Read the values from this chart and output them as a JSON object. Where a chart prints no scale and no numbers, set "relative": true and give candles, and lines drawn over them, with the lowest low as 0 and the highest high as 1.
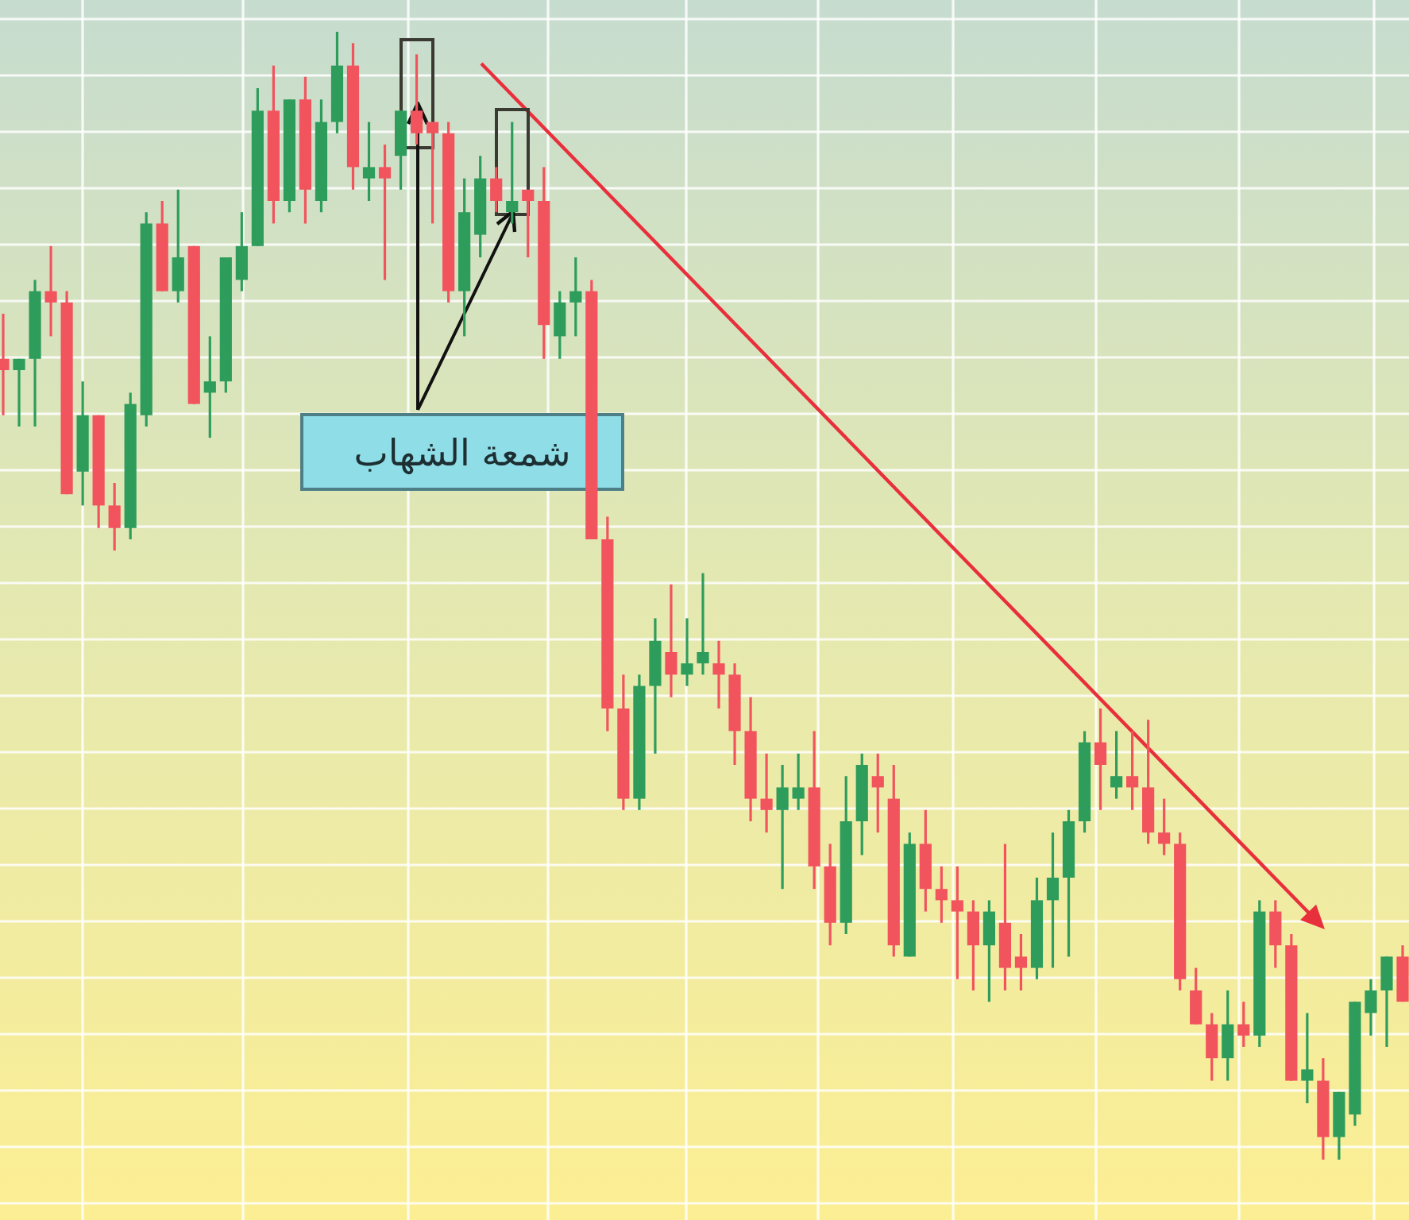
{
  "chart_data": {
    "type": "candlestick",
    "relative": true,
    "grid": true,
    "categories": [
      null,
      null,
      null,
      null,
      null,
      null,
      null,
      null,
      null,
      null,
      null,
      null,
      null,
      null,
      null,
      null,
      null,
      null,
      null,
      null,
      null,
      null,
      null,
      null,
      null,
      null,
      null,
      null,
      null,
      null,
      null,
      null,
      null,
      null,
      null,
      null,
      null,
      null,
      null,
      null,
      null,
      null,
      null,
      null,
      null,
      null,
      null,
      null,
      null,
      null,
      null,
      null,
      null,
      null,
      null,
      null,
      null,
      null,
      null,
      null,
      null,
      null,
      null,
      null,
      null,
      null,
      null,
      null,
      null,
      null,
      null,
      null,
      null,
      null,
      null,
      null,
      null,
      null,
      null,
      null,
      null,
      null,
      null,
      null,
      null,
      null,
      null,
      null,
      null
    ],
    "ohlc": [
      [
        0.71,
        0.75,
        0.66,
        0.7
      ],
      [
        0.7,
        0.71,
        0.65,
        0.71
      ],
      [
        0.71,
        0.78,
        0.65,
        0.77
      ],
      [
        0.77,
        0.81,
        0.73,
        0.76
      ],
      [
        0.76,
        0.77,
        0.59,
        0.59
      ],
      [
        0.61,
        0.69,
        0.58,
        0.66
      ],
      [
        0.66,
        0.66,
        0.56,
        0.58
      ],
      [
        0.58,
        0.6,
        0.54,
        0.56
      ],
      [
        0.56,
        0.68,
        0.55,
        0.67
      ],
      [
        0.66,
        0.84,
        0.65,
        0.83
      ],
      [
        0.83,
        0.85,
        0.77,
        0.77
      ],
      [
        0.77,
        0.86,
        0.76,
        0.8
      ],
      [
        0.81,
        0.81,
        0.67,
        0.67
      ],
      [
        0.68,
        0.73,
        0.64,
        0.69
      ],
      [
        0.69,
        0.8,
        0.68,
        0.8
      ],
      [
        0.78,
        0.84,
        0.77,
        0.81
      ],
      [
        0.81,
        0.95,
        0.81,
        0.93
      ],
      [
        0.93,
        0.97,
        0.83,
        0.85
      ],
      [
        0.85,
        0.94,
        0.84,
        0.94
      ],
      [
        0.94,
        0.96,
        0.83,
        0.86
      ],
      [
        0.85,
        0.94,
        0.84,
        0.92
      ],
      [
        0.92,
        1.0,
        0.91,
        0.97
      ],
      [
        0.97,
        0.99,
        0.86,
        0.88
      ],
      [
        0.87,
        0.92,
        0.85,
        0.88
      ],
      [
        0.88,
        0.9,
        0.78,
        0.87
      ],
      [
        0.89,
        0.93,
        0.86,
        0.93
      ],
      [
        0.93,
        0.98,
        0.9,
        0.91
      ],
      [
        0.92,
        0.92,
        0.83,
        0.91
      ],
      [
        0.91,
        0.92,
        0.76,
        0.77
      ],
      [
        0.77,
        0.87,
        0.73,
        0.84
      ],
      [
        0.82,
        0.89,
        0.8,
        0.87
      ],
      [
        0.87,
        0.88,
        0.84,
        0.85
      ],
      [
        0.84,
        0.92,
        0.83,
        0.85
      ],
      [
        0.86,
        0.86,
        0.8,
        0.85
      ],
      [
        0.85,
        0.88,
        0.71,
        0.74
      ],
      [
        0.73,
        0.77,
        0.71,
        0.76
      ],
      [
        0.76,
        0.8,
        0.73,
        0.77
      ],
      [
        0.77,
        0.78,
        0.55,
        0.55
      ],
      [
        0.55,
        0.57,
        0.38,
        0.4
      ],
      [
        0.4,
        0.43,
        0.31,
        0.32
      ],
      [
        0.32,
        0.43,
        0.31,
        0.42
      ],
      [
        0.42,
        0.48,
        0.36,
        0.46
      ],
      [
        0.45,
        0.51,
        0.41,
        0.43
      ],
      [
        0.43,
        0.48,
        0.42,
        0.44
      ],
      [
        0.44,
        0.52,
        0.43,
        0.45
      ],
      [
        0.44,
        0.46,
        0.4,
        0.43
      ],
      [
        0.43,
        0.44,
        0.35,
        0.38
      ],
      [
        0.38,
        0.41,
        0.3,
        0.32
      ],
      [
        0.32,
        0.36,
        0.29,
        0.31
      ],
      [
        0.31,
        0.35,
        0.24,
        0.33
      ],
      [
        0.32,
        0.36,
        0.31,
        0.33
      ],
      [
        0.33,
        0.38,
        0.24,
        0.26
      ],
      [
        0.26,
        0.28,
        0.19,
        0.21
      ],
      [
        0.21,
        0.34,
        0.2,
        0.3
      ],
      [
        0.3,
        0.36,
        0.27,
        0.35
      ],
      [
        0.34,
        0.36,
        0.29,
        0.33
      ],
      [
        0.32,
        0.35,
        0.18,
        0.19
      ],
      [
        0.18,
        0.29,
        0.18,
        0.28
      ],
      [
        0.28,
        0.31,
        0.22,
        0.24
      ],
      [
        0.24,
        0.26,
        0.21,
        0.23
      ],
      [
        0.23,
        0.26,
        0.16,
        0.22
      ],
      [
        0.22,
        0.23,
        0.15,
        0.19
      ],
      [
        0.19,
        0.23,
        0.14,
        0.22
      ],
      [
        0.21,
        0.28,
        0.15,
        0.17
      ],
      [
        0.18,
        0.2,
        0.15,
        0.17
      ],
      [
        0.17,
        0.25,
        0.16,
        0.23
      ],
      [
        0.23,
        0.29,
        0.17,
        0.25
      ],
      [
        0.25,
        0.31,
        0.18,
        0.3
      ],
      [
        0.3,
        0.38,
        0.29,
        0.37
      ],
      [
        0.37,
        0.4,
        0.31,
        0.35
      ],
      [
        0.33,
        0.38,
        0.32,
        0.34
      ],
      [
        0.34,
        0.38,
        0.31,
        0.33
      ],
      [
        0.33,
        0.39,
        0.28,
        0.29
      ],
      [
        0.29,
        0.32,
        0.27,
        0.28
      ],
      [
        0.28,
        0.29,
        0.15,
        0.16
      ],
      [
        0.15,
        0.17,
        0.12,
        0.12
      ],
      [
        0.12,
        0.13,
        0.07,
        0.09
      ],
      [
        0.09,
        0.15,
        0.07,
        0.12
      ],
      [
        0.12,
        0.14,
        0.1,
        0.11
      ],
      [
        0.11,
        0.23,
        0.1,
        0.22
      ],
      [
        0.22,
        0.23,
        0.17,
        0.19
      ],
      [
        0.19,
        0.2,
        0.07,
        0.07
      ],
      [
        0.07,
        0.13,
        0.05,
        0.08
      ],
      [
        0.07,
        0.09,
        0.0,
        0.02
      ],
      [
        0.02,
        0.06,
        0.0,
        0.06
      ],
      [
        0.04,
        0.14,
        0.03,
        0.14
      ],
      [
        0.13,
        0.16,
        0.11,
        0.15
      ],
      [
        0.15,
        0.18,
        0.1,
        0.18
      ],
      [
        0.18,
        0.19,
        0.14,
        0.14
      ]
    ],
    "annotations": [
      "شمعة الشهاب"
    ]
  }
}
